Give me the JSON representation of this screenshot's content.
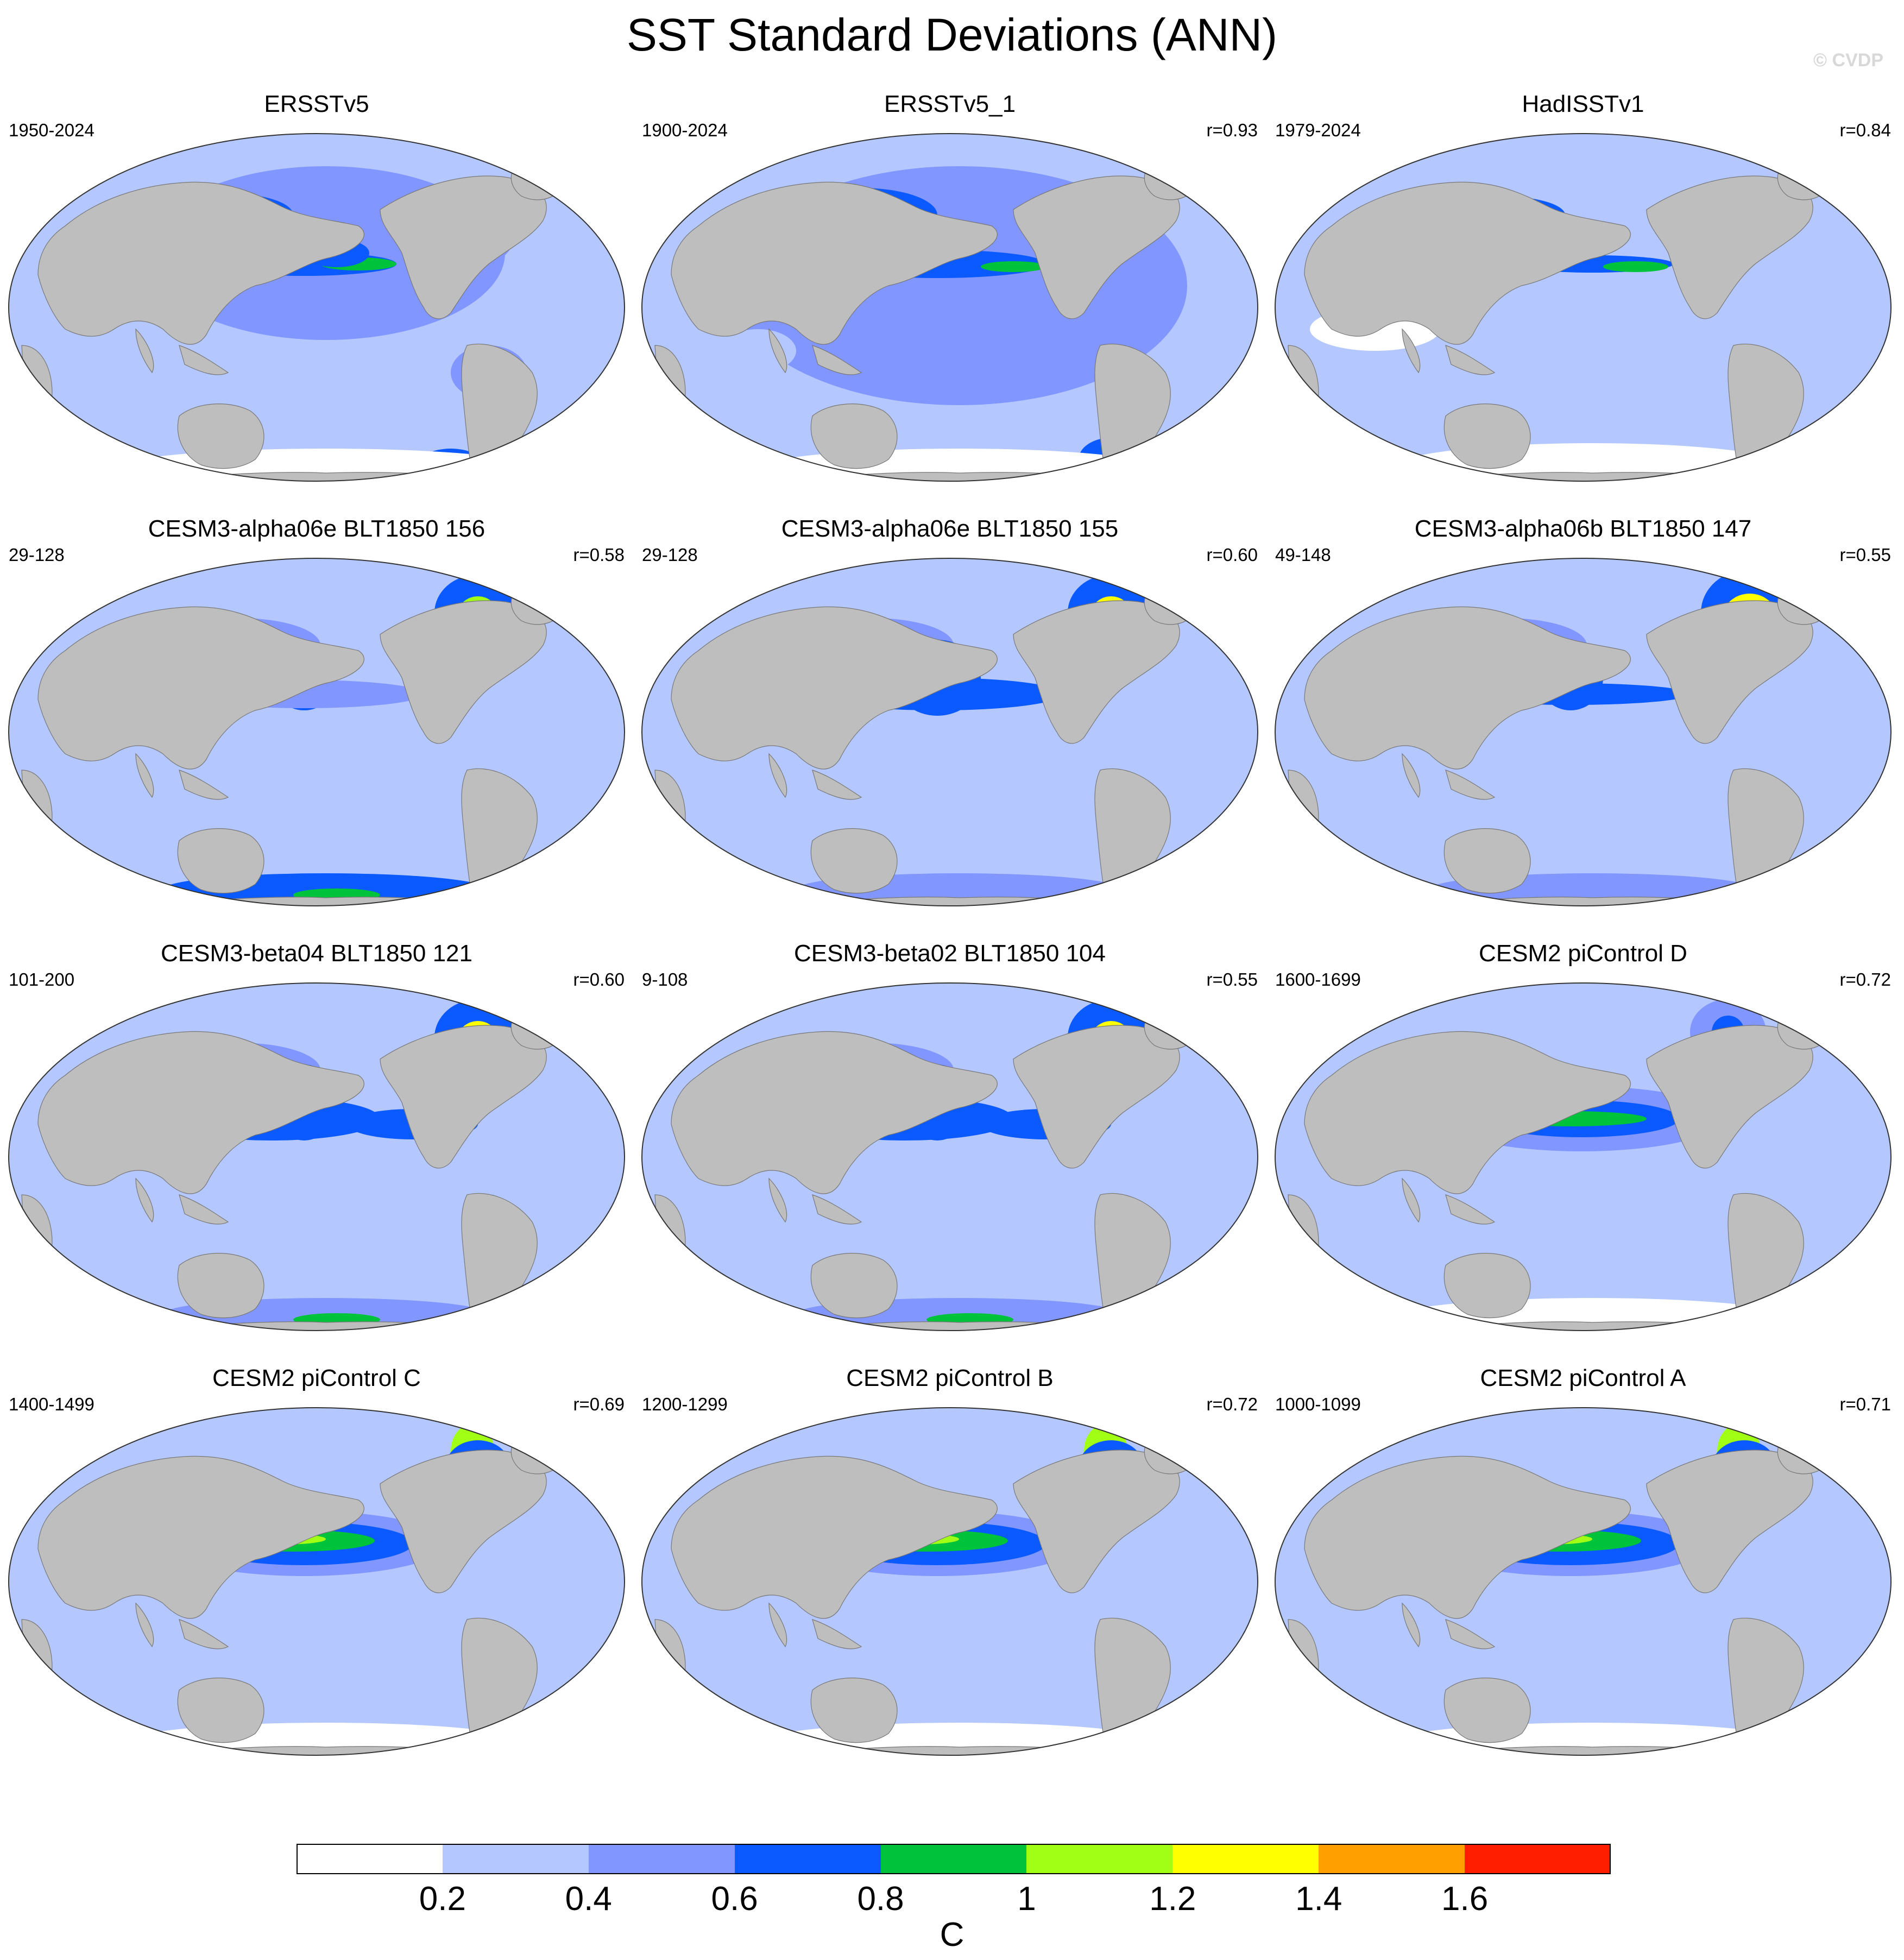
{
  "figure": {
    "title": "SST Standard Deviations (ANN)",
    "watermark": "© CVDP"
  },
  "colors": {
    "land": "#bebebe",
    "levels": [
      "#ffffff",
      "#b4c8ff",
      "#8296ff",
      "#0a5aff",
      "#00c33c",
      "#a0ff14",
      "#ffff00",
      "#ffa000",
      "#ff1e00"
    ]
  },
  "panels": [
    {
      "title": "ERSSTv5",
      "years": "1950-2024",
      "r": "",
      "pattern": "obs"
    },
    {
      "title": "ERSSTv5_1",
      "years": "1900-2024",
      "r": "r=0.93",
      "pattern": "obs2"
    },
    {
      "title": "HadISSTv1",
      "years": "1979-2024",
      "r": "r=0.84",
      "pattern": "had"
    },
    {
      "title": "CESM3-alpha06e BLT1850 156",
      "years": "29-128",
      "r": "r=0.58",
      "pattern": "cesm3"
    },
    {
      "title": "CESM3-alpha06e BLT1850 155",
      "years": "29-128",
      "r": "r=0.60",
      "pattern": "cesm3b"
    },
    {
      "title": "CESM3-alpha06b BLT1850 147",
      "years": "49-148",
      "r": "r=0.55",
      "pattern": "cesm3c"
    },
    {
      "title": "CESM3-beta04 BLT1850 121",
      "years": "101-200",
      "r": "r=0.60",
      "pattern": "cesm3d"
    },
    {
      "title": "CESM3-beta02 BLT1850 104",
      "years": "9-108",
      "r": "r=0.55",
      "pattern": "cesm3d"
    },
    {
      "title": "CESM2 piControl D",
      "years": "1600-1699",
      "r": "r=0.72",
      "pattern": "cesm2d"
    },
    {
      "title": "CESM2 piControl C",
      "years": "1400-1499",
      "r": "r=0.69",
      "pattern": "cesm2"
    },
    {
      "title": "CESM2 piControl B",
      "years": "1200-1299",
      "r": "r=0.72",
      "pattern": "cesm2"
    },
    {
      "title": "CESM2 piControl A",
      "years": "1000-1099",
      "r": "r=0.71",
      "pattern": "cesm2"
    }
  ],
  "colorbar": {
    "labels": [
      "0.2",
      "0.4",
      "0.6",
      "0.8",
      "1",
      "1.2",
      "1.4",
      "1.6"
    ],
    "units": "C"
  }
}
